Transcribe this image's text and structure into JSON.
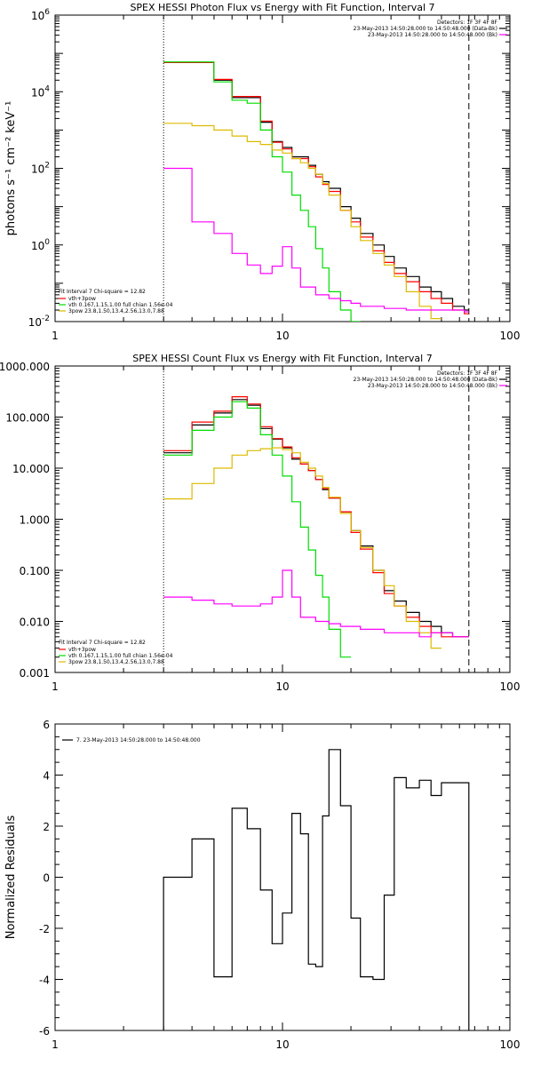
{
  "chart_data": [
    {
      "id": "photon",
      "type": "line",
      "title": "SPEX HESSI Photon Flux vs Energy with Fit Function, Interval 7",
      "xlabel": "",
      "ylabel": "photons s⁻¹ cm⁻² keV⁻¹",
      "xscale": "log",
      "yscale": "log",
      "xlim": [
        1,
        100
      ],
      "ylim": [
        0.01,
        1000000
      ],
      "x_ticks": [
        {
          "v": 1,
          "label": "1"
        },
        {
          "v": 10,
          "label": "10"
        },
        {
          "v": 100,
          "label": "100"
        }
      ],
      "y_ticks": [
        {
          "v": 0.01,
          "label": "10",
          "exp": "-2"
        },
        {
          "v": 1,
          "label": "10",
          "exp": "0"
        },
        {
          "v": 100,
          "label": "10",
          "exp": "2"
        },
        {
          "v": 10000,
          "label": "10",
          "exp": "4"
        },
        {
          "v": 1000000,
          "label": "10",
          "exp": "6"
        }
      ],
      "vlines": [
        {
          "x": 3,
          "style": "dotted"
        },
        {
          "x": 66,
          "style": "dashed"
        }
      ],
      "header_lines": [
        {
          "text": "Detectors: 1F 3F 4F 8F",
          "swatch": ""
        },
        {
          "text": "23-May-2013 14:50:28.000 to 14:50:48.000 (Data-Bk)",
          "swatch": "#000000"
        },
        {
          "text": "23-May-2013 14:50:28.000 to 14:50:48.000 (Bk)",
          "swatch": "#ff00ff"
        }
      ],
      "legend": {
        "title": "Fit Interval 7   Chi-square = 12.82",
        "entries": [
          {
            "text": "vth+3pow",
            "color": "#ff0000"
          },
          {
            "text": "vth  0.167,1.15,1.00  full chian 1.56e-04",
            "color": "#00dd00"
          },
          {
            "text": "3pow  23.8,1.50,13.4,2.56,13.0,7.88",
            "color": "#ddbb00"
          }
        ]
      },
      "series": [
        {
          "color": "#000000",
          "edges": [
            3,
            4,
            5,
            6,
            7,
            8,
            9,
            10,
            11,
            12,
            13,
            14,
            15,
            16,
            18,
            20,
            22,
            25,
            28,
            31,
            35,
            40,
            45,
            50,
            56,
            63,
            66
          ],
          "values": [
            58000,
            58000,
            20000,
            7000,
            7000,
            1600,
            500,
            350,
            200,
            200,
            120,
            70,
            45,
            30,
            10,
            5,
            2,
            1,
            0.5,
            0.25,
            0.15,
            0.08,
            0.06,
            0.04,
            0.025,
            0.02
          ]
        },
        {
          "color": "#ff0000",
          "edges": [
            3,
            4,
            5,
            6,
            7,
            8,
            9,
            10,
            11,
            12,
            13,
            14,
            15,
            16,
            18,
            20,
            22,
            25,
            28,
            31,
            35,
            40,
            45,
            50,
            56,
            63,
            66
          ],
          "values": [
            58000,
            58000,
            21000,
            7500,
            7500,
            1700,
            480,
            320,
            180,
            180,
            110,
            60,
            38,
            25,
            8,
            4,
            1.6,
            0.7,
            0.35,
            0.18,
            0.11,
            0.06,
            0.04,
            0.03,
            0.02,
            0.016
          ]
        },
        {
          "color": "#00dd00",
          "edges": [
            3,
            4,
            5,
            6,
            7,
            8,
            9,
            10,
            11,
            12,
            13,
            14,
            15,
            16,
            18,
            20,
            22
          ],
          "values": [
            60000,
            60000,
            18000,
            6000,
            5000,
            1000,
            200,
            80,
            20,
            8,
            3,
            0.8,
            0.25,
            0.06,
            0.02,
            0.01
          ]
        },
        {
          "color": "#ddbb00",
          "edges": [
            3,
            4,
            5,
            6,
            7,
            8,
            9,
            10,
            11,
            12,
            13,
            14,
            15,
            16,
            18,
            20,
            22,
            25,
            28,
            31,
            35,
            40,
            45,
            50
          ],
          "values": [
            1500,
            1300,
            1000,
            700,
            500,
            420,
            300,
            250,
            180,
            140,
            100,
            70,
            40,
            20,
            8,
            3,
            1.3,
            0.6,
            0.3,
            0.15,
            0.06,
            0.025,
            0.012
          ]
        },
        {
          "color": "#ff00ff",
          "edges": [
            3,
            4,
            5,
            6,
            7,
            8,
            9,
            10,
            11,
            12,
            14,
            16,
            18,
            20,
            22,
            25,
            28,
            31,
            35,
            40,
            45,
            50,
            56,
            63,
            66
          ],
          "values": [
            100,
            4,
            2,
            0.6,
            0.3,
            0.18,
            0.28,
            0.9,
            0.25,
            0.08,
            0.05,
            0.04,
            0.035,
            0.03,
            0.025,
            0.025,
            0.022,
            0.022,
            0.02,
            0.02,
            0.02,
            0.02,
            0.02,
            0.018
          ]
        }
      ]
    },
    {
      "id": "count",
      "type": "line",
      "title": "SPEX HESSI Count Flux vs Energy with Fit Function, Interval 7",
      "xlabel": "",
      "ylabel": "",
      "xscale": "log",
      "yscale": "log",
      "xlim": [
        1,
        100
      ],
      "ylim": [
        0.001,
        1000
      ],
      "x_ticks": [
        {
          "v": 1,
          "label": "1"
        },
        {
          "v": 10,
          "label": "10"
        },
        {
          "v": 100,
          "label": "100"
        }
      ],
      "y_ticks": [
        {
          "v": 0.001,
          "label": "0.001"
        },
        {
          "v": 0.01,
          "label": "0.010"
        },
        {
          "v": 0.1,
          "label": "0.100"
        },
        {
          "v": 1,
          "label": "1.000"
        },
        {
          "v": 10,
          "label": "10.000"
        },
        {
          "v": 100,
          "label": "100.000"
        },
        {
          "v": 1000,
          "label": "1000.000"
        }
      ],
      "vlines": [
        {
          "x": 3,
          "style": "dotted"
        },
        {
          "x": 66,
          "style": "dashed"
        }
      ],
      "header_lines": [
        {
          "text": "Detectors: 1F 3F 4F 8F",
          "swatch": ""
        },
        {
          "text": "23-May-2013 14:50:28.000 to 14:50:48.000 (Data-Bk)",
          "swatch": "#000000"
        },
        {
          "text": "23-May-2013 14:50:28.000 to 14:50:48.000 (Bk)",
          "swatch": "#ff00ff"
        }
      ],
      "legend": {
        "title": "Fit Interval 7   Chi-square = 12.82",
        "entries": [
          {
            "text": "vth+3pow",
            "color": "#ff0000"
          },
          {
            "text": "vth  0.167,1.15,1.00  full chian 1.56e-04",
            "color": "#00dd00"
          },
          {
            "text": "3pow  23.8,1.50,13.4,2.56,13.0,7.88",
            "color": "#ddbb00"
          }
        ]
      },
      "series": [
        {
          "color": "#000000",
          "edges": [
            3,
            4,
            5,
            6,
            7,
            8,
            9,
            10,
            11,
            12,
            13,
            14,
            15,
            16,
            18,
            20,
            22,
            25,
            28,
            31,
            35,
            40,
            45,
            50,
            56,
            63,
            66
          ],
          "values": [
            20,
            70,
            120,
            220,
            170,
            60,
            37,
            25,
            15,
            12,
            9,
            6,
            3.8,
            2.6,
            1.4,
            0.6,
            0.3,
            0.1,
            0.04,
            0.025,
            0.015,
            0.01,
            0.008,
            0.006,
            0.005,
            0.005
          ]
        },
        {
          "color": "#ff0000",
          "edges": [
            3,
            4,
            5,
            6,
            7,
            8,
            9,
            10,
            11,
            12,
            13,
            14,
            15,
            16,
            18,
            20,
            22,
            25,
            28,
            31,
            35,
            40,
            45,
            50,
            56,
            63,
            66
          ],
          "values": [
            22,
            80,
            130,
            250,
            180,
            65,
            38,
            26,
            16,
            12,
            9,
            6,
            4,
            2.6,
            1.4,
            0.55,
            0.26,
            0.09,
            0.035,
            0.02,
            0.012,
            0.008,
            0.006,
            0.005,
            0.005,
            0.005
          ]
        },
        {
          "color": "#00dd00",
          "edges": [
            3,
            4,
            5,
            6,
            7,
            8,
            9,
            10,
            11,
            12,
            13,
            14,
            15,
            16,
            18,
            20
          ],
          "values": [
            18,
            55,
            100,
            200,
            150,
            45,
            18,
            7,
            2.2,
            0.7,
            0.25,
            0.08,
            0.03,
            0.007,
            0.002
          ]
        },
        {
          "color": "#ddbb00",
          "edges": [
            3,
            4,
            5,
            6,
            7,
            8,
            9,
            10,
            11,
            12,
            13,
            14,
            15,
            16,
            18,
            20,
            22,
            25,
            28,
            31,
            35,
            40,
            45,
            50
          ],
          "values": [
            2.5,
            5,
            10,
            18,
            22,
            24,
            25,
            23,
            20,
            13,
            10,
            7,
            4.2,
            2.7,
            1.3,
            0.6,
            0.28,
            0.1,
            0.05,
            0.02,
            0.01,
            0.006,
            0.003
          ]
        },
        {
          "color": "#ff00ff",
          "edges": [
            3,
            4,
            5,
            6,
            7,
            8,
            9,
            10,
            11,
            12,
            14,
            16,
            18,
            20,
            22,
            25,
            28,
            31,
            35,
            40,
            45,
            50,
            56,
            63,
            66
          ],
          "values": [
            0.03,
            0.026,
            0.022,
            0.02,
            0.02,
            0.022,
            0.03,
            0.1,
            0.03,
            0.012,
            0.01,
            0.009,
            0.008,
            0.008,
            0.007,
            0.007,
            0.006,
            0.006,
            0.006,
            0.005,
            0.006,
            0.006,
            0.005,
            0.005
          ]
        }
      ]
    },
    {
      "id": "resid",
      "type": "line",
      "title": "",
      "xlabel": "",
      "ylabel": "Normalized Residuals",
      "xscale": "log",
      "yscale": "linear",
      "xlim": [
        1,
        100
      ],
      "ylim": [
        -6,
        6
      ],
      "x_ticks": [
        {
          "v": 1,
          "label": "1"
        },
        {
          "v": 10,
          "label": "10"
        },
        {
          "v": 100,
          "label": "100"
        }
      ],
      "y_ticks": [
        {
          "v": -6,
          "label": "-6"
        },
        {
          "v": -4,
          "label": "-4"
        },
        {
          "v": -2,
          "label": "-2"
        },
        {
          "v": 0,
          "label": "0"
        },
        {
          "v": 2,
          "label": "2"
        },
        {
          "v": 4,
          "label": "4"
        },
        {
          "v": 6,
          "label": "6"
        }
      ],
      "vlines": [],
      "header_lines": [],
      "legend": {
        "title": "",
        "entries": [
          {
            "text": "7. 23-May-2013 14:50:28.000 to 14:50:48.000",
            "color": "#000000"
          }
        ]
      },
      "series": [
        {
          "color": "#000000",
          "from_bottom": true,
          "edges": [
            3,
            3.5,
            4,
            4.5,
            5,
            6,
            7,
            8,
            9,
            10,
            11,
            12,
            13,
            14,
            15,
            16,
            18,
            20,
            22,
            25,
            28,
            31,
            35,
            40,
            45,
            50,
            56,
            66
          ],
          "values": [
            0,
            0,
            1.5,
            1.5,
            -3.9,
            2.7,
            1.9,
            -0.5,
            -2.6,
            -1.4,
            2.5,
            1.7,
            -3.4,
            -3.5,
            2.4,
            5.0,
            2.8,
            -1.6,
            -3.9,
            -4.0,
            -0.7,
            3.9,
            3.5,
            3.8,
            3.2,
            3.7,
            3.7
          ]
        }
      ]
    }
  ]
}
